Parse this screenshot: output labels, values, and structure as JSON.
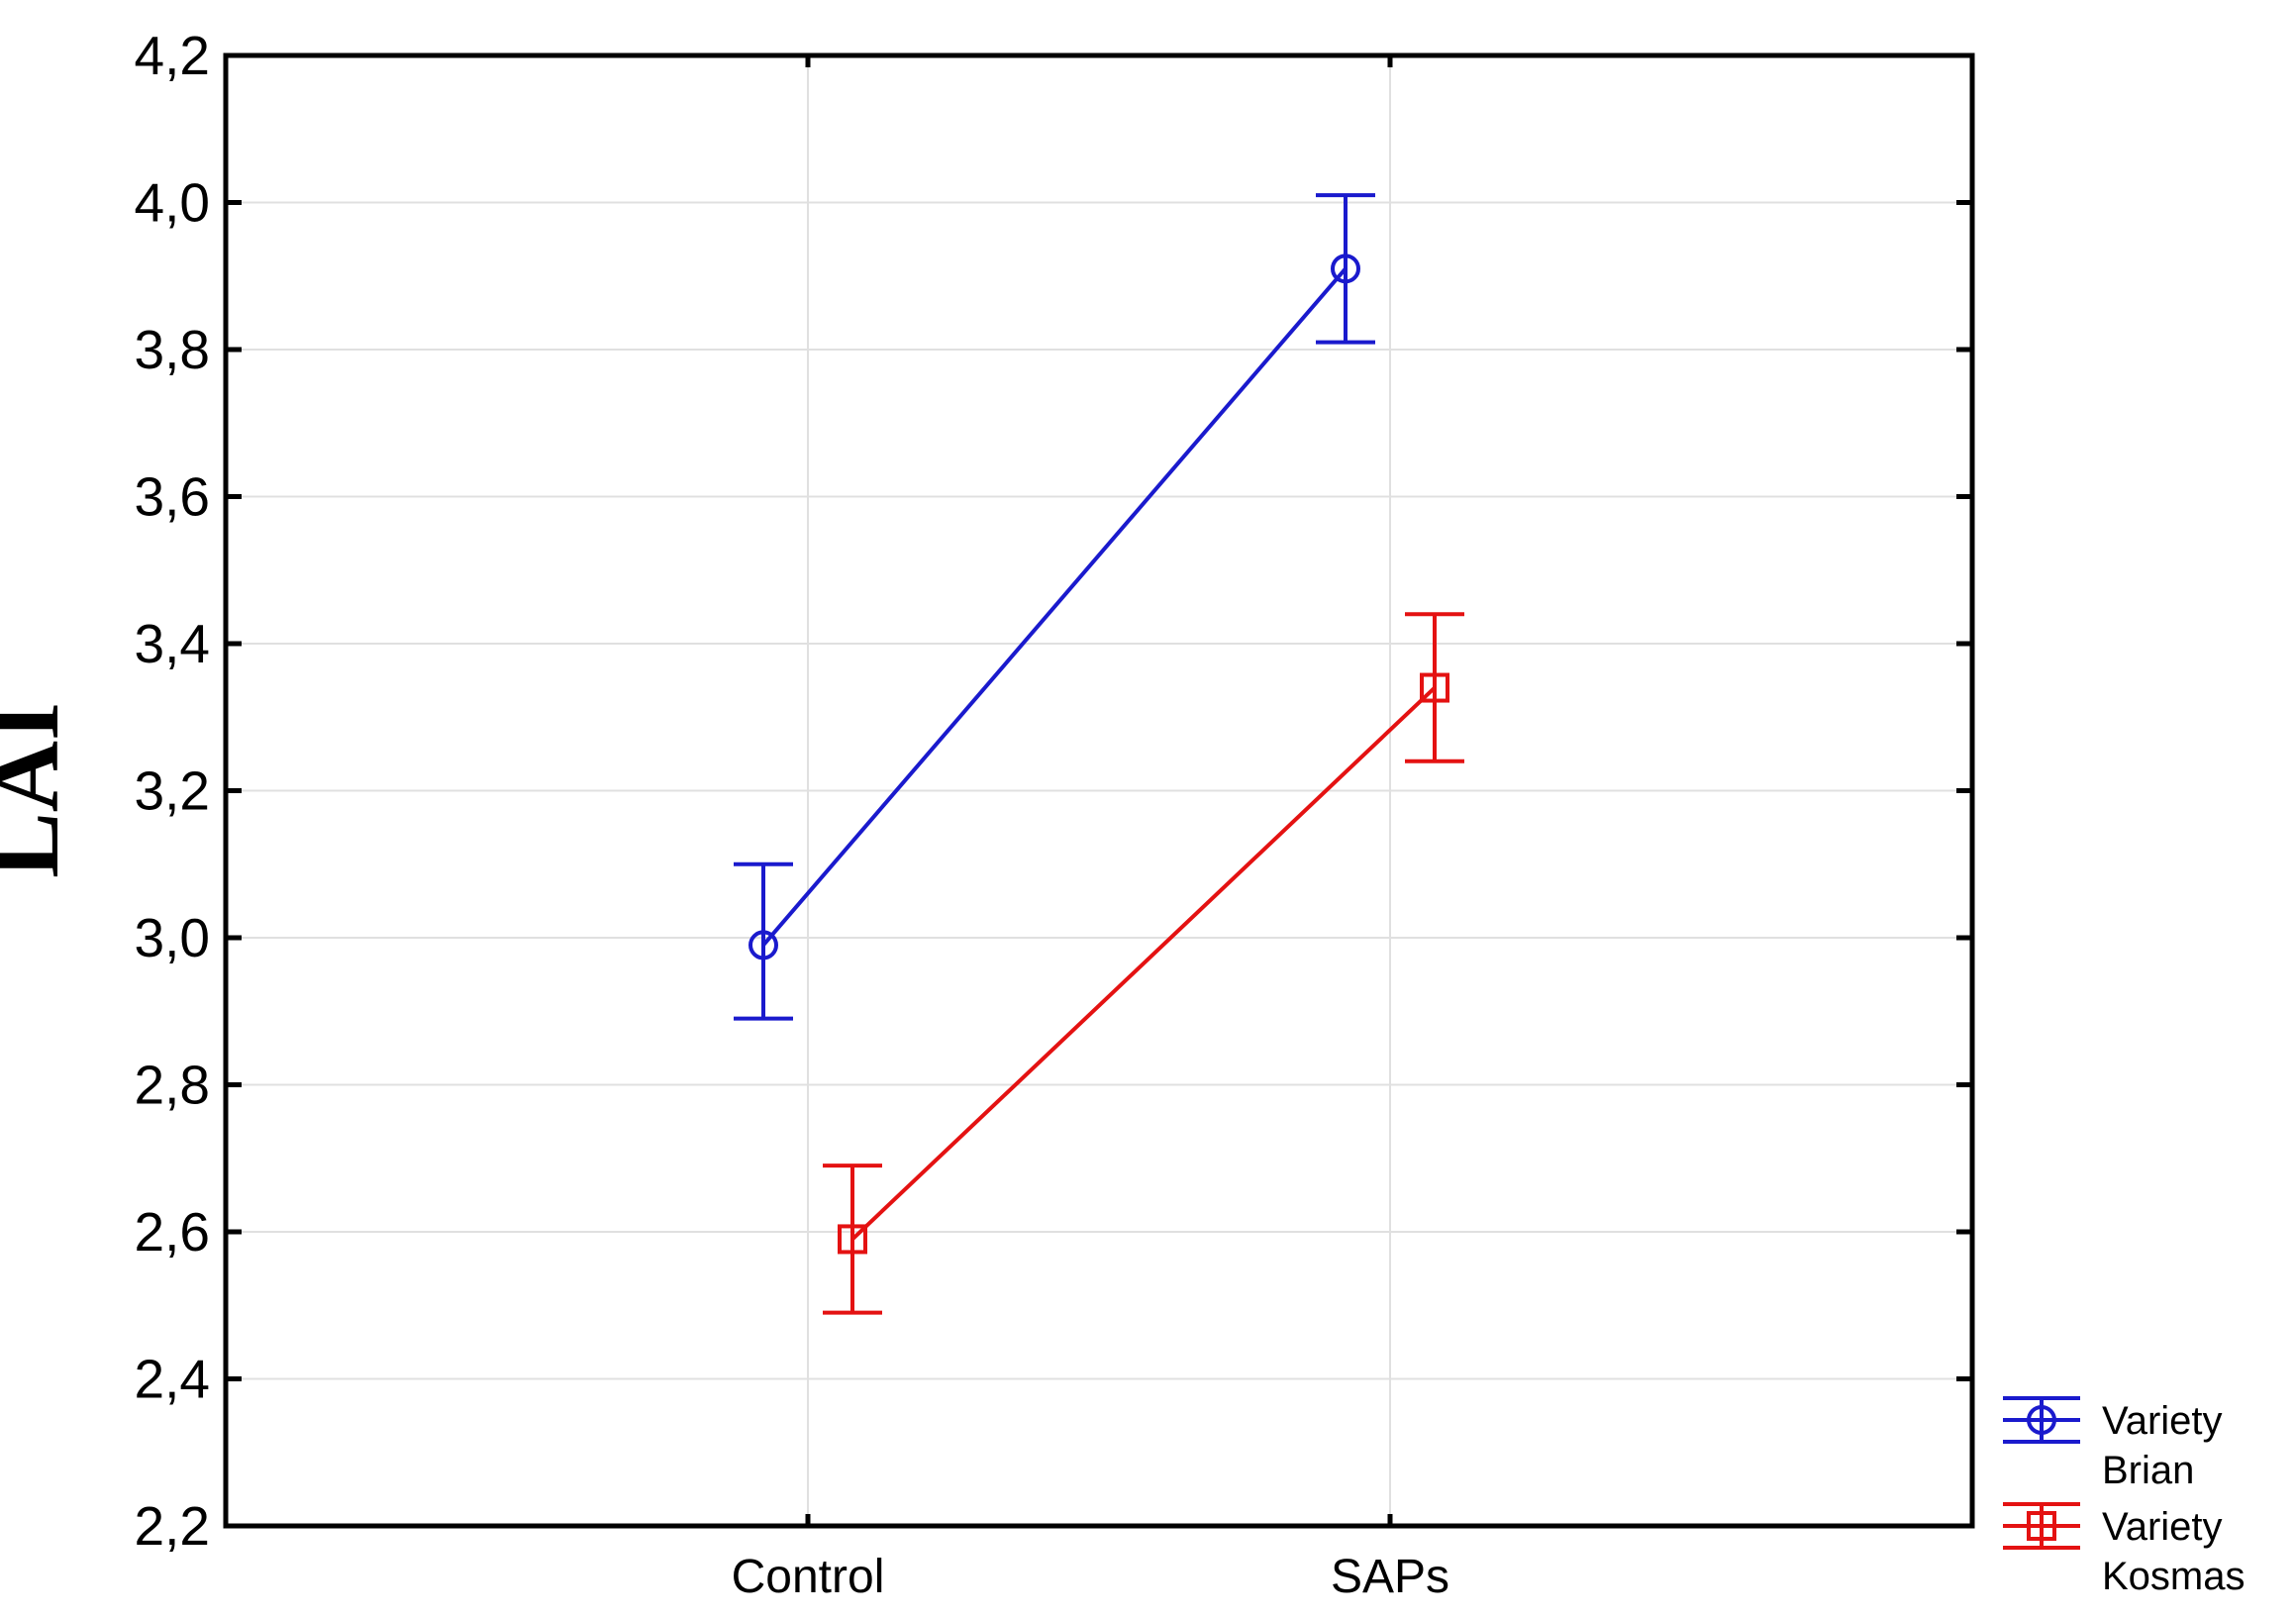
{
  "figure": {
    "background": "#ffffff",
    "axis_color": "#000000",
    "gridline_color": "#e0e0e0"
  },
  "chart_data": {
    "type": "line",
    "title": "",
    "xlabel": "",
    "ylabel": "LAI",
    "categories": [
      "Control",
      "SAPs"
    ],
    "series": [
      {
        "name": "Variety Brian",
        "legend_lines": [
          "Variety",
          "Brian"
        ],
        "color": "#1a1acd",
        "marker": "circle",
        "values": [
          2.99,
          3.91
        ],
        "err_low": [
          2.89,
          3.81
        ],
        "err_high": [
          3.1,
          4.01
        ]
      },
      {
        "name": "Variety Kosmas",
        "legend_lines": [
          "Variety",
          "Kosmas"
        ],
        "color": "#e41212",
        "marker": "square",
        "values": [
          2.59,
          3.34
        ],
        "err_low": [
          2.49,
          3.24
        ],
        "err_high": [
          2.69,
          3.44
        ]
      }
    ],
    "ylim": [
      2.2,
      4.2
    ],
    "ytick_step": 0.2,
    "ytick_labels": [
      "2,2",
      "2,4",
      "2,6",
      "2,8",
      "3,0",
      "3,2",
      "3,4",
      "3,6",
      "3,8",
      "4,0",
      "4,2"
    ],
    "decimal_separator": ",",
    "grid": true,
    "legend_position": "bottom-right-outside"
  }
}
